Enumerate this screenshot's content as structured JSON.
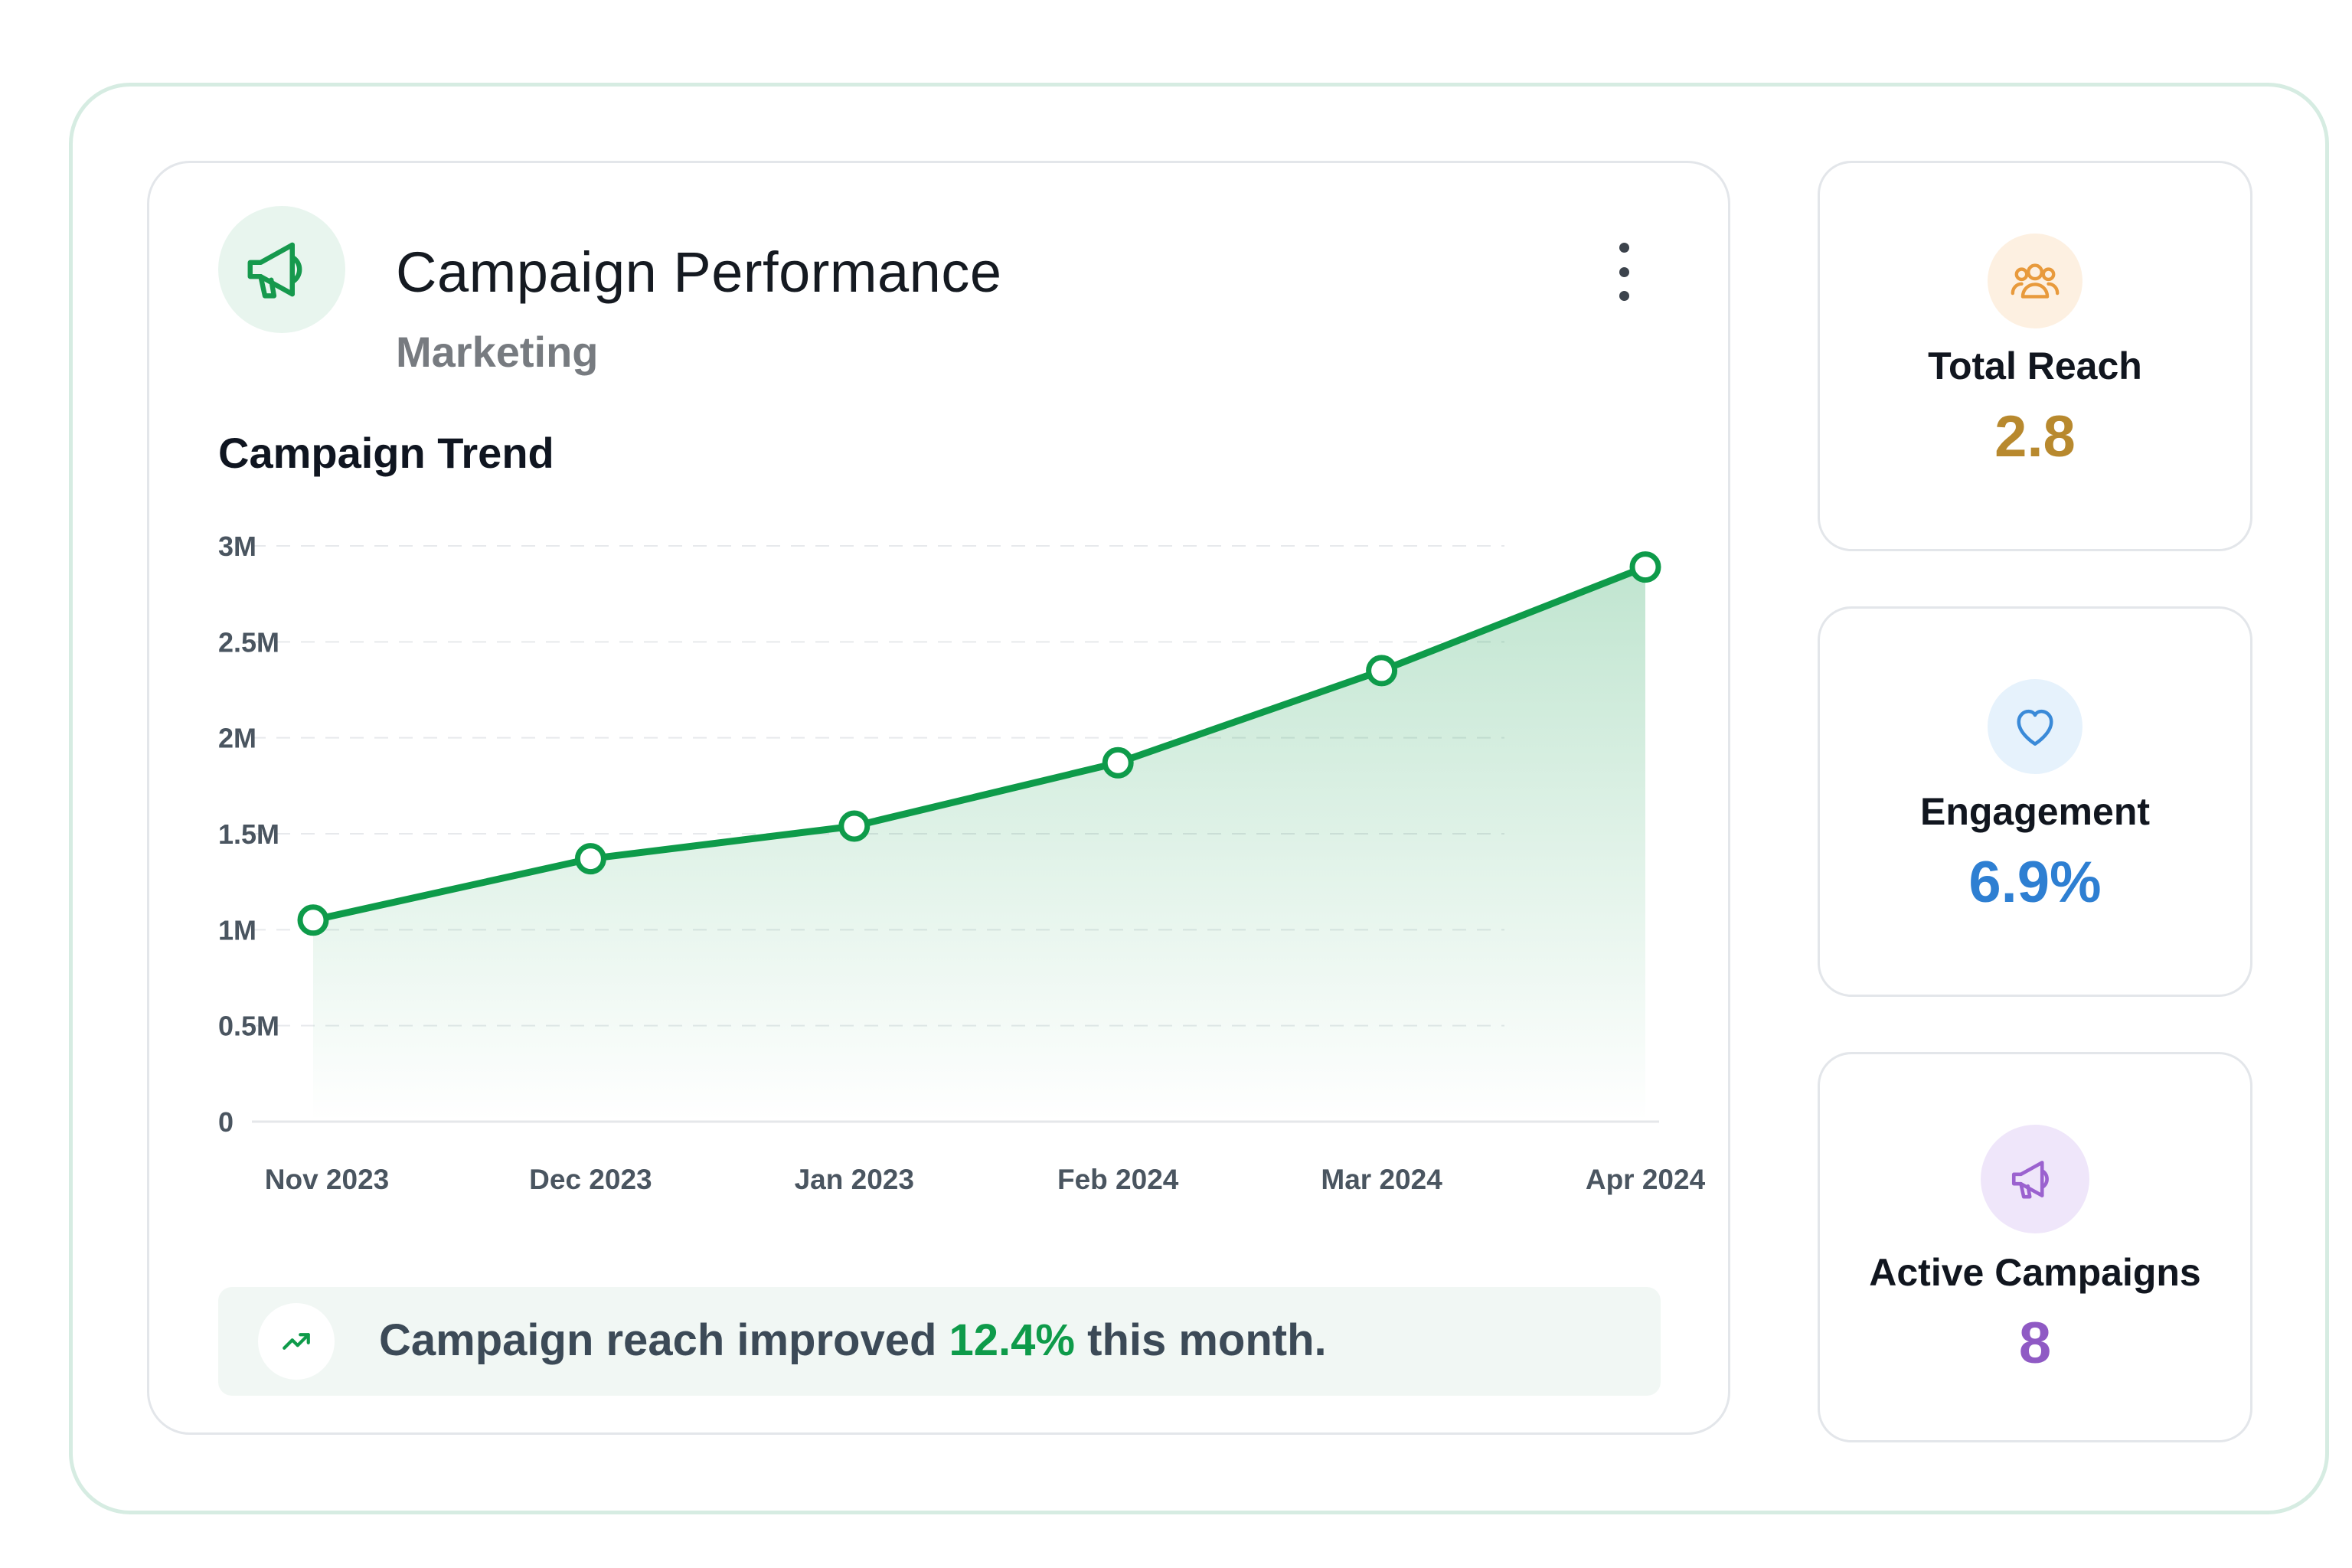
{
  "campaign_card": {
    "title": "Campaign Performance",
    "subtitle": "Marketing",
    "header_icon": "megaphone-icon",
    "menu_icon": "kebab-menu-icon",
    "section_title": "Campaign Trend"
  },
  "chart_data": {
    "type": "area",
    "x": [
      "Nov 2023",
      "Dec 2023",
      "Jan 2023",
      "Feb 2024",
      "Mar 2024",
      "Apr 2024"
    ],
    "series": [
      {
        "values": [
          1.05,
          1.37,
          1.54,
          1.87,
          2.35,
          2.89
        ],
        "color": "#0e9b4a"
      }
    ],
    "y_ticks": [
      "0",
      "0.5M",
      "1M",
      "1.5M",
      "2M",
      "2.5M",
      "3M"
    ],
    "y_tick_values": [
      0,
      0.5,
      1,
      1.5,
      2,
      2.5,
      3
    ],
    "ylim": [
      0,
      3
    ],
    "grid": true,
    "legend": "none"
  },
  "insight": {
    "icon": "trending-up-icon",
    "text_before": "Campaign reach improved ",
    "highlight": "12.4%",
    "text_after": " this month."
  },
  "stats": [
    {
      "label": "Total Reach",
      "value": "2.8",
      "icon": "users-icon",
      "color": "#b8892e",
      "icon_bg": "#fdf0e1",
      "icon_stroke": "#e89a3c"
    },
    {
      "label": "Engagement",
      "value": "6.9%",
      "icon": "heart-icon",
      "color": "#2e7fd2",
      "icon_bg": "#e6f2fc",
      "icon_stroke": "#3a8ad8"
    },
    {
      "label": "Active Campaigns",
      "value": "8",
      "icon": "megaphone-icon",
      "color": "#8f5ac4",
      "icon_bg": "#efe6fa",
      "icon_stroke": "#9b62cf"
    }
  ],
  "colors": {
    "accent": "#0e9b4a",
    "frame_border": "#d6ece2",
    "card_border": "#e3e6ea"
  }
}
